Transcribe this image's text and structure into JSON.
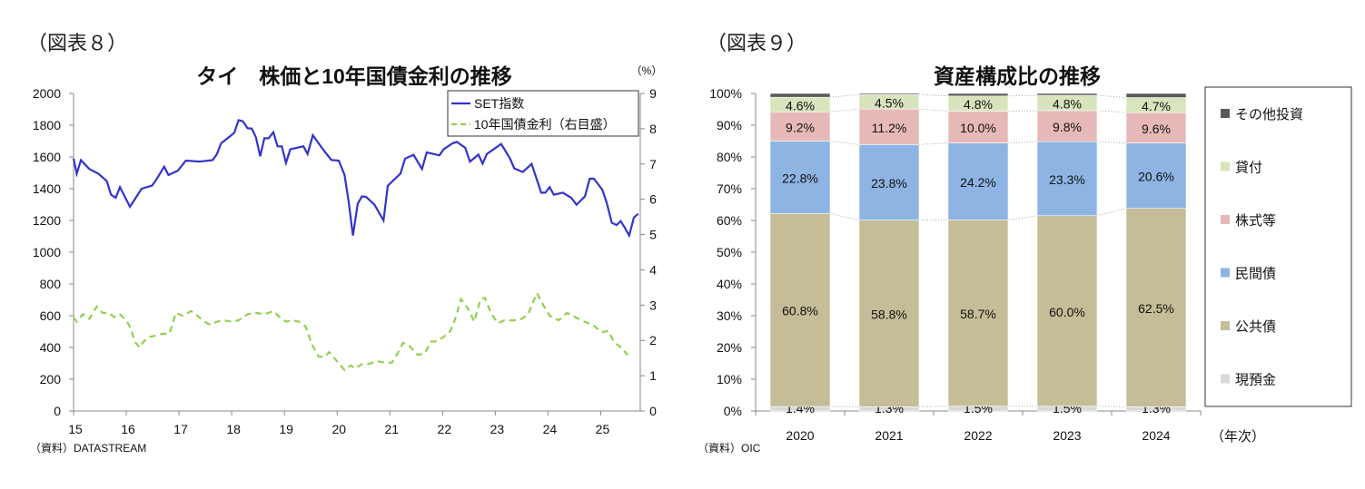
{
  "figures": {
    "left_label": "（図表８）",
    "right_label": "（図表９）"
  },
  "chart_data": [
    {
      "type": "line",
      "title": "タイ　株価と10年国債金利の推移",
      "right_unit": "（%）",
      "source": "（資料）DATASTREAM",
      "xlim": [
        2015,
        2025.75
      ],
      "xticks": [
        2015,
        2016,
        2017,
        2018,
        2019,
        2020,
        2021,
        2022,
        2023,
        2024,
        2025
      ],
      "xtick_labels": [
        "15",
        "16",
        "17",
        "18",
        "19",
        "20",
        "21",
        "22",
        "23",
        "24",
        "25"
      ],
      "ylim_left": [
        0,
        2000
      ],
      "yticks_left": [
        0,
        200,
        400,
        600,
        800,
        1000,
        1200,
        1400,
        1600,
        1800,
        2000
      ],
      "ylim_right": [
        0,
        9
      ],
      "yticks_right": [
        0,
        1,
        2,
        3,
        4,
        5,
        6,
        7,
        8,
        9
      ],
      "grid": false,
      "legend_position": "top-right",
      "series": [
        {
          "name": "SET指数",
          "axis": "left",
          "color": "#3333cc",
          "style": "solid",
          "points": [
            [
              2015.0,
              1590
            ],
            [
              2015.06,
              1495
            ],
            [
              2015.14,
              1580
            ],
            [
              2015.3,
              1524
            ],
            [
              2015.47,
              1495
            ],
            [
              2015.63,
              1448
            ],
            [
              2015.71,
              1362
            ],
            [
              2015.8,
              1343
            ],
            [
              2015.88,
              1410
            ],
            [
              2016.07,
              1286
            ],
            [
              2016.29,
              1400
            ],
            [
              2016.49,
              1420
            ],
            [
              2016.57,
              1457
            ],
            [
              2016.72,
              1539
            ],
            [
              2016.8,
              1486
            ],
            [
              2016.98,
              1514
            ],
            [
              2017.13,
              1577
            ],
            [
              2017.39,
              1571
            ],
            [
              2017.64,
              1580
            ],
            [
              2017.72,
              1619
            ],
            [
              2017.8,
              1686
            ],
            [
              2017.89,
              1710
            ],
            [
              2018.05,
              1752
            ],
            [
              2018.13,
              1832
            ],
            [
              2018.21,
              1825
            ],
            [
              2018.3,
              1781
            ],
            [
              2018.38,
              1779
            ],
            [
              2018.46,
              1724
            ],
            [
              2018.54,
              1604
            ],
            [
              2018.62,
              1718
            ],
            [
              2018.7,
              1718
            ],
            [
              2018.79,
              1756
            ],
            [
              2018.87,
              1667
            ],
            [
              2018.95,
              1667
            ],
            [
              2019.03,
              1562
            ],
            [
              2019.11,
              1648
            ],
            [
              2019.36,
              1667
            ],
            [
              2019.44,
              1619
            ],
            [
              2019.54,
              1737
            ],
            [
              2019.73,
              1648
            ],
            [
              2019.89,
              1581
            ],
            [
              2020.03,
              1577
            ],
            [
              2020.14,
              1486
            ],
            [
              2020.22,
              1314
            ],
            [
              2020.3,
              1105
            ],
            [
              2020.39,
              1305
            ],
            [
              2020.47,
              1352
            ],
            [
              2020.55,
              1348
            ],
            [
              2020.71,
              1299
            ],
            [
              2020.88,
              1200
            ],
            [
              2020.96,
              1419
            ],
            [
              2021.2,
              1495
            ],
            [
              2021.29,
              1590
            ],
            [
              2021.45,
              1613
            ],
            [
              2021.61,
              1524
            ],
            [
              2021.7,
              1629
            ],
            [
              2021.94,
              1610
            ],
            [
              2022.02,
              1648
            ],
            [
              2022.19,
              1686
            ],
            [
              2022.27,
              1695
            ],
            [
              2022.43,
              1657
            ],
            [
              2022.52,
              1571
            ],
            [
              2022.68,
              1615
            ],
            [
              2022.76,
              1558
            ],
            [
              2022.84,
              1619
            ],
            [
              2023.11,
              1682
            ],
            [
              2023.28,
              1590
            ],
            [
              2023.36,
              1528
            ],
            [
              2023.52,
              1505
            ],
            [
              2023.69,
              1556
            ],
            [
              2023.87,
              1375
            ],
            [
              2023.95,
              1375
            ],
            [
              2024.03,
              1410
            ],
            [
              2024.11,
              1362
            ],
            [
              2024.28,
              1375
            ],
            [
              2024.44,
              1343
            ],
            [
              2024.54,
              1299
            ],
            [
              2024.7,
              1352
            ],
            [
              2024.79,
              1463
            ],
            [
              2024.87,
              1463
            ],
            [
              2025.03,
              1394
            ],
            [
              2025.11,
              1314
            ],
            [
              2025.21,
              1185
            ],
            [
              2025.3,
              1171
            ],
            [
              2025.38,
              1196
            ],
            [
              2025.46,
              1152
            ],
            [
              2025.54,
              1105
            ],
            [
              2025.63,
              1219
            ],
            [
              2025.71,
              1242
            ]
          ]
        },
        {
          "name": "10年国債金利（右目盛）",
          "axis": "right",
          "color": "#92d050",
          "style": "dashed",
          "points": [
            [
              2015.0,
              2.66
            ],
            [
              2015.06,
              2.53
            ],
            [
              2015.18,
              2.74
            ],
            [
              2015.3,
              2.61
            ],
            [
              2015.44,
              2.96
            ],
            [
              2015.55,
              2.78
            ],
            [
              2015.67,
              2.78
            ],
            [
              2015.77,
              2.66
            ],
            [
              2015.88,
              2.74
            ],
            [
              2016.0,
              2.57
            ],
            [
              2016.08,
              2.36
            ],
            [
              2016.16,
              1.97
            ],
            [
              2016.25,
              1.8
            ],
            [
              2016.33,
              1.97
            ],
            [
              2016.45,
              2.1
            ],
            [
              2016.57,
              2.14
            ],
            [
              2016.7,
              2.19
            ],
            [
              2016.82,
              2.19
            ],
            [
              2016.94,
              2.78
            ],
            [
              2017.07,
              2.7
            ],
            [
              2017.23,
              2.83
            ],
            [
              2017.35,
              2.7
            ],
            [
              2017.48,
              2.53
            ],
            [
              2017.6,
              2.44
            ],
            [
              2017.72,
              2.53
            ],
            [
              2017.84,
              2.57
            ],
            [
              2018.01,
              2.53
            ],
            [
              2018.13,
              2.57
            ],
            [
              2018.3,
              2.74
            ],
            [
              2018.46,
              2.78
            ],
            [
              2018.62,
              2.74
            ],
            [
              2018.79,
              2.83
            ],
            [
              2018.91,
              2.66
            ],
            [
              2019.03,
              2.53
            ],
            [
              2019.16,
              2.57
            ],
            [
              2019.28,
              2.53
            ],
            [
              2019.4,
              2.4
            ],
            [
              2019.52,
              1.89
            ],
            [
              2019.65,
              1.54
            ],
            [
              2019.77,
              1.54
            ],
            [
              2019.85,
              1.67
            ],
            [
              2020.02,
              1.37
            ],
            [
              2020.14,
              1.16
            ],
            [
              2020.26,
              1.29
            ],
            [
              2020.34,
              1.2
            ],
            [
              2020.47,
              1.33
            ],
            [
              2020.59,
              1.33
            ],
            [
              2020.75,
              1.41
            ],
            [
              2020.92,
              1.37
            ],
            [
              2021.04,
              1.37
            ],
            [
              2021.16,
              1.67
            ],
            [
              2021.25,
              1.93
            ],
            [
              2021.37,
              1.84
            ],
            [
              2021.53,
              1.59
            ],
            [
              2021.66,
              1.63
            ],
            [
              2021.78,
              1.97
            ],
            [
              2021.9,
              1.97
            ],
            [
              2022.02,
              2.1
            ],
            [
              2022.15,
              2.27
            ],
            [
              2022.23,
              2.57
            ],
            [
              2022.35,
              3.17
            ],
            [
              2022.48,
              2.91
            ],
            [
              2022.6,
              2.53
            ],
            [
              2022.72,
              3.17
            ],
            [
              2022.8,
              3.21
            ],
            [
              2022.93,
              2.74
            ],
            [
              2023.05,
              2.49
            ],
            [
              2023.17,
              2.57
            ],
            [
              2023.34,
              2.57
            ],
            [
              2023.5,
              2.61
            ],
            [
              2023.62,
              2.74
            ],
            [
              2023.79,
              3.34
            ],
            [
              2023.91,
              3.0
            ],
            [
              2024.03,
              2.7
            ],
            [
              2024.2,
              2.57
            ],
            [
              2024.36,
              2.78
            ],
            [
              2024.52,
              2.66
            ],
            [
              2024.69,
              2.53
            ],
            [
              2024.85,
              2.44
            ],
            [
              2025.02,
              2.23
            ],
            [
              2025.14,
              2.27
            ],
            [
              2025.26,
              1.93
            ],
            [
              2025.39,
              1.8
            ],
            [
              2025.51,
              1.59
            ]
          ]
        }
      ]
    },
    {
      "type": "bar",
      "stacked": true,
      "title": "資産構成比の推移",
      "xlabel": "（年次）",
      "source": "（資料）OIC",
      "categories": [
        "2020",
        "2021",
        "2022",
        "2023",
        "2024"
      ],
      "ylim": [
        0,
        100
      ],
      "yticks": [
        0,
        10,
        20,
        30,
        40,
        50,
        60,
        70,
        80,
        90,
        100
      ],
      "ytick_labels": [
        "0%",
        "10%",
        "20%",
        "30%",
        "40%",
        "50%",
        "60%",
        "70%",
        "80%",
        "90%",
        "100%"
      ],
      "grid": false,
      "legend_position": "right",
      "series": [
        {
          "name": "現預金",
          "color": "#d9d9d9",
          "values": [
            1.4,
            1.3,
            1.5,
            1.5,
            1.3
          ],
          "labels": [
            "1.4%",
            "1.3%",
            "1.5%",
            "1.5%",
            "1.3%"
          ]
        },
        {
          "name": "公共債",
          "color": "#c4bd97",
          "values": [
            60.8,
            58.8,
            58.7,
            60.0,
            62.5
          ],
          "labels": [
            "60.8%",
            "58.8%",
            "58.7%",
            "60.0%",
            "62.5%"
          ]
        },
        {
          "name": "民間債",
          "color": "#8db4e2",
          "values": [
            22.8,
            23.8,
            24.2,
            23.3,
            20.6
          ],
          "labels": [
            "22.8%",
            "23.8%",
            "24.2%",
            "23.3%",
            "20.6%"
          ]
        },
        {
          "name": "株式等",
          "color": "#e6b9b8",
          "values": [
            9.2,
            11.2,
            10.0,
            9.8,
            9.6
          ],
          "labels": [
            "9.2%",
            "11.2%",
            "10.0%",
            "9.8%",
            "9.6%"
          ]
        },
        {
          "name": "貸付",
          "color": "#d8e4bc",
          "values": [
            4.6,
            4.5,
            4.8,
            4.8,
            4.7
          ],
          "labels": [
            "4.6%",
            "4.5%",
            "4.8%",
            "4.8%",
            "4.7%"
          ]
        },
        {
          "name": "その他投資",
          "color": "#595959",
          "values": [
            1.2,
            0.4,
            0.8,
            0.6,
            1.3
          ],
          "labels": []
        }
      ],
      "legend_order": [
        "その他投資",
        "貸付",
        "株式等",
        "民間債",
        "公共債",
        "現預金"
      ]
    }
  ]
}
